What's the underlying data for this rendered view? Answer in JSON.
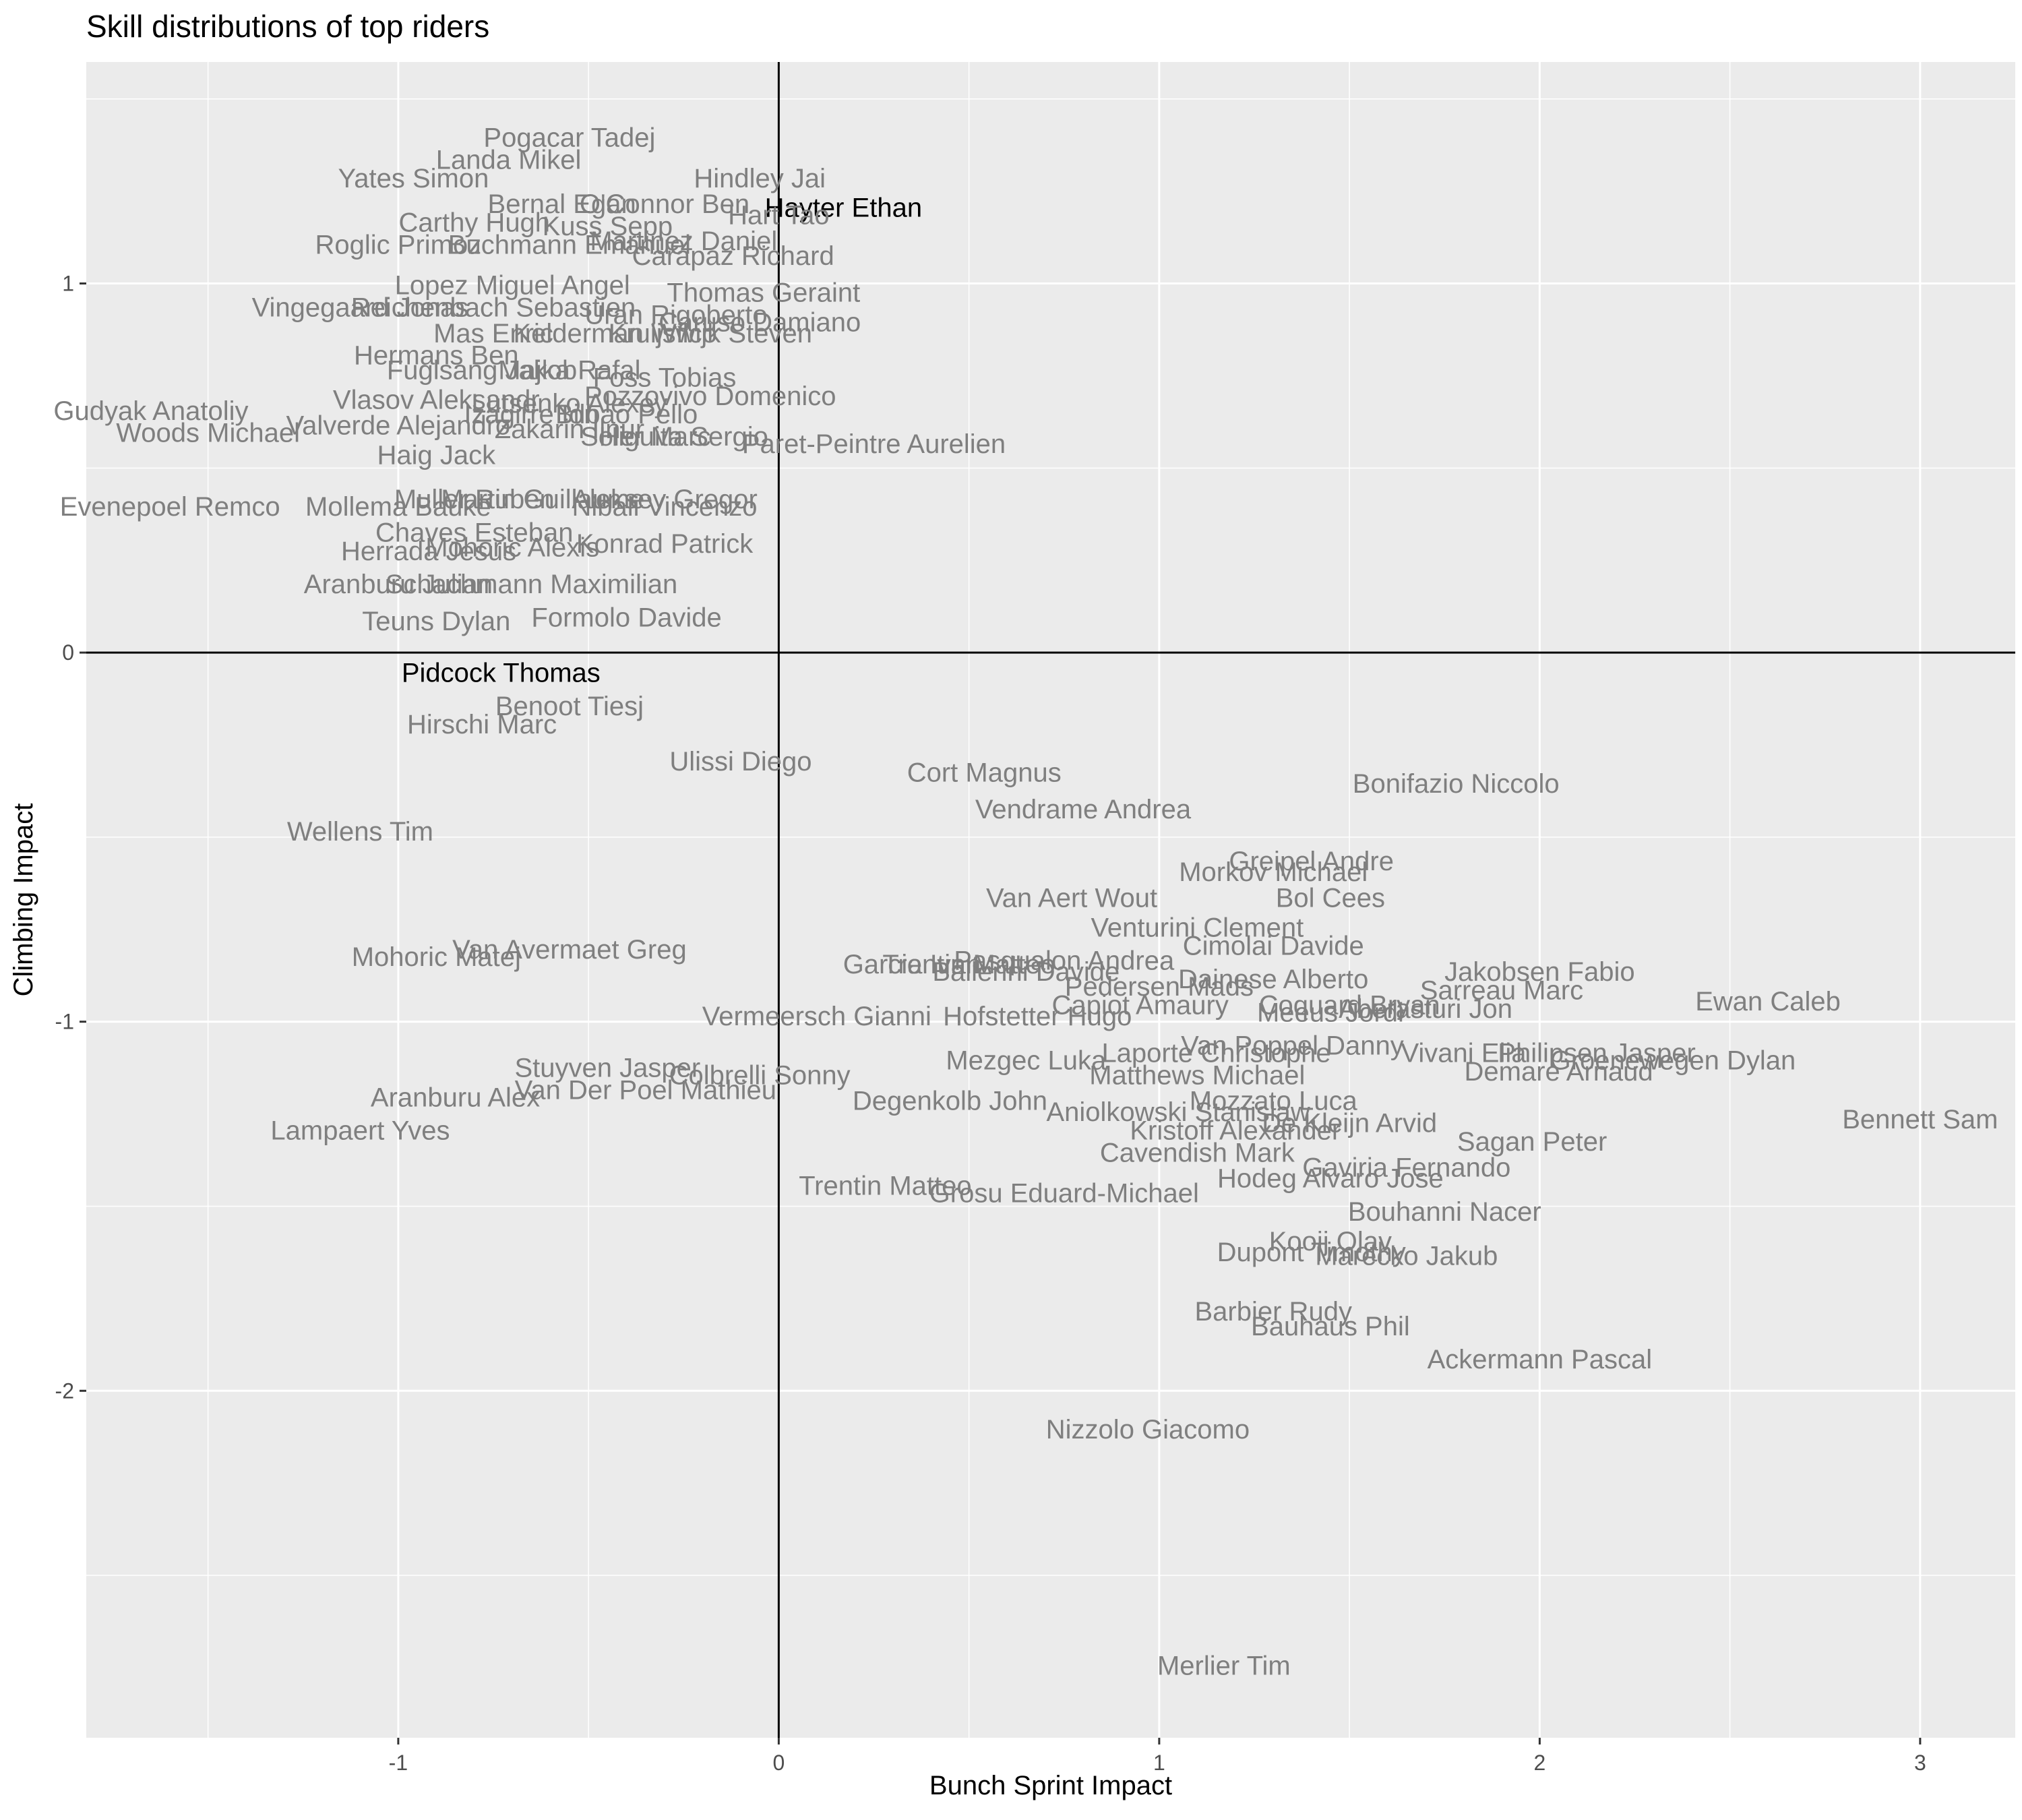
{
  "chart_data": {
    "type": "scatter",
    "title": "Skill distributions of top riders",
    "xlabel": "Bunch Sprint Impact",
    "ylabel": "Climbing Impact",
    "xlim": [
      -1.82,
      3.25
    ],
    "ylim": [
      -2.94,
      1.6
    ],
    "x_ticks": [
      -1,
      0,
      1,
      2,
      3
    ],
    "y_ticks": [
      -2,
      -1,
      0,
      1
    ],
    "grid": true,
    "reference_lines": {
      "x": 0,
      "y": 0
    },
    "colors": {
      "panel": "#ebebeb",
      "grid": "#ffffff",
      "label": "#7f7f7f",
      "highlight": "#000000"
    },
    "points": [
      {
        "name": "Pogacar Tadej",
        "x": -0.55,
        "y": 1.39
      },
      {
        "name": "Landa Mikel",
        "x": -0.71,
        "y": 1.33
      },
      {
        "name": "Yates Simon",
        "x": -0.96,
        "y": 1.28
      },
      {
        "name": "Hindley Jai",
        "x": -0.05,
        "y": 1.28
      },
      {
        "name": "Bernal Egan",
        "x": -0.57,
        "y": 1.21
      },
      {
        "name": "O'Connor Ben",
        "x": -0.3,
        "y": 1.21
      },
      {
        "name": "Hayter Ethan",
        "x": 0.17,
        "y": 1.2,
        "highlight": true
      },
      {
        "name": "Hart Tao",
        "x": 0.0,
        "y": 1.18
      },
      {
        "name": "Carthy Hugh",
        "x": -0.8,
        "y": 1.16
      },
      {
        "name": "Kuss Sepp",
        "x": -0.45,
        "y": 1.15
      },
      {
        "name": "Roglic Primoz",
        "x": -1.0,
        "y": 1.1
      },
      {
        "name": "Buchmann Emanuel",
        "x": -0.55,
        "y": 1.1
      },
      {
        "name": "Martinez Daniel",
        "x": -0.25,
        "y": 1.11
      },
      {
        "name": "Carapaz Richard",
        "x": -0.12,
        "y": 1.07
      },
      {
        "name": "Lopez Miguel Angel",
        "x": -0.7,
        "y": 0.99
      },
      {
        "name": "Thomas Geraint",
        "x": -0.04,
        "y": 0.97
      },
      {
        "name": "Vingegaard Jonas",
        "x": -1.1,
        "y": 0.93
      },
      {
        "name": "Reichenbach Sebastien",
        "x": -0.75,
        "y": 0.93
      },
      {
        "name": "Uran Rigoberto",
        "x": -0.27,
        "y": 0.91
      },
      {
        "name": "Caruso Damiano",
        "x": -0.05,
        "y": 0.89
      },
      {
        "name": "Mas Enric",
        "x": -0.75,
        "y": 0.86
      },
      {
        "name": "Kelderman Wilco",
        "x": -0.43,
        "y": 0.86
      },
      {
        "name": "Kruijswijk Steven",
        "x": -0.18,
        "y": 0.86
      },
      {
        "name": "Hermans Ben",
        "x": -0.9,
        "y": 0.8
      },
      {
        "name": "Fuglsang Jakob",
        "x": -0.78,
        "y": 0.76
      },
      {
        "name": "Majka Rafal",
        "x": -0.55,
        "y": 0.76
      },
      {
        "name": "Foss Tobias",
        "x": -0.3,
        "y": 0.74
      },
      {
        "name": "Vlasov Aleksandr",
        "x": -0.9,
        "y": 0.68
      },
      {
        "name": "Pozzovivo Domenico",
        "x": -0.18,
        "y": 0.69
      },
      {
        "name": "Lutsenko Alexey",
        "x": -0.55,
        "y": 0.67
      },
      {
        "name": "Izagirre Ion",
        "x": -0.65,
        "y": 0.64
      },
      {
        "name": "Bilbao Pello",
        "x": -0.4,
        "y": 0.64
      },
      {
        "name": "Valverde Alejandro",
        "x": -1.0,
        "y": 0.61
      },
      {
        "name": "Zakarin Ilnur",
        "x": -0.55,
        "y": 0.6
      },
      {
        "name": "Soler Marc",
        "x": -0.35,
        "y": 0.58
      },
      {
        "name": "Higuita Sergio",
        "x": -0.25,
        "y": 0.58
      },
      {
        "name": "Paret-Peintre Aurelien",
        "x": 0.25,
        "y": 0.56
      },
      {
        "name": "Gudyak Anatoliy",
        "x": -1.65,
        "y": 0.65
      },
      {
        "name": "Woods Michael",
        "x": -1.5,
        "y": 0.59
      },
      {
        "name": "Haig Jack",
        "x": -0.9,
        "y": 0.53
      },
      {
        "name": "Mollema Bauke",
        "x": -1.0,
        "y": 0.39
      },
      {
        "name": "Muller Ruben",
        "x": -0.8,
        "y": 0.41
      },
      {
        "name": "Martin Guillaume",
        "x": -0.62,
        "y": 0.41
      },
      {
        "name": "Aleksey Gregor",
        "x": -0.3,
        "y": 0.41
      },
      {
        "name": "Nibali Vincenzo",
        "x": -0.3,
        "y": 0.39
      },
      {
        "name": "Evenepoel Remco",
        "x": -1.6,
        "y": 0.39
      },
      {
        "name": "Chaves Esteban",
        "x": -0.8,
        "y": 0.32
      },
      {
        "name": "Konrad Patrick",
        "x": -0.3,
        "y": 0.29
      },
      {
        "name": "Herrada Jesus",
        "x": -0.92,
        "y": 0.27
      },
      {
        "name": "Mohoric Alexis",
        "x": -0.7,
        "y": 0.28
      },
      {
        "name": "Aranburu Julian",
        "x": -1.0,
        "y": 0.18
      },
      {
        "name": "Schachmann Maximilian",
        "x": -0.65,
        "y": 0.18
      },
      {
        "name": "Formolo Davide",
        "x": -0.4,
        "y": 0.09
      },
      {
        "name": "Teuns Dylan",
        "x": -0.9,
        "y": 0.08
      },
      {
        "name": "Pidcock Thomas",
        "x": -0.73,
        "y": -0.06,
        "highlight": true
      },
      {
        "name": "Benoot Tiesj",
        "x": -0.55,
        "y": -0.15
      },
      {
        "name": "Hirschi Marc",
        "x": -0.78,
        "y": -0.2
      },
      {
        "name": "Ulissi Diego",
        "x": -0.1,
        "y": -0.3
      },
      {
        "name": "Cort Magnus",
        "x": 0.54,
        "y": -0.33
      },
      {
        "name": "Bonifazio Niccolo",
        "x": 1.78,
        "y": -0.36
      },
      {
        "name": "Vendrame Andrea",
        "x": 0.8,
        "y": -0.43
      },
      {
        "name": "Wellens Tim",
        "x": -1.1,
        "y": -0.49
      },
      {
        "name": "Greipel Andre",
        "x": 1.4,
        "y": -0.57
      },
      {
        "name": "Morkov Michael",
        "x": 1.3,
        "y": -0.6
      },
      {
        "name": "Van Aert Wout",
        "x": 0.77,
        "y": -0.67
      },
      {
        "name": "Bol Cees",
        "x": 1.45,
        "y": -0.67
      },
      {
        "name": "Venturini Clement",
        "x": 1.1,
        "y": -0.75
      },
      {
        "name": "Cimolai Davide",
        "x": 1.3,
        "y": -0.8
      },
      {
        "name": "Van Avermaet Greg",
        "x": -0.55,
        "y": -0.81
      },
      {
        "name": "Mohoric Matej",
        "x": -0.9,
        "y": -0.83
      },
      {
        "name": "Garcia Ivan",
        "x": 0.35,
        "y": -0.85
      },
      {
        "name": "Trentin Matteo",
        "x": 0.5,
        "y": -0.85
      },
      {
        "name": "Pasqualon Andrea",
        "x": 0.75,
        "y": -0.84
      },
      {
        "name": "Ballerini Davide",
        "x": 0.65,
        "y": -0.87
      },
      {
        "name": "Dainese Alberto",
        "x": 1.3,
        "y": -0.89
      },
      {
        "name": "Pedersen Mads",
        "x": 1.0,
        "y": -0.91
      },
      {
        "name": "Jakobsen Fabio",
        "x": 2.0,
        "y": -0.87
      },
      {
        "name": "Sarreau Marc",
        "x": 1.9,
        "y": -0.92
      },
      {
        "name": "Ewan Caleb",
        "x": 2.6,
        "y": -0.95
      },
      {
        "name": "Coquard Bryan",
        "x": 1.5,
        "y": -0.96
      },
      {
        "name": "Aberasturi Jon",
        "x": 1.7,
        "y": -0.97
      },
      {
        "name": "Meeus Jordi",
        "x": 1.45,
        "y": -0.98
      },
      {
        "name": "Capiot Amaury",
        "x": 0.95,
        "y": -0.96
      },
      {
        "name": "Hofstetter Hugo",
        "x": 0.68,
        "y": -0.99
      },
      {
        "name": "Vermeersch Gianni",
        "x": 0.1,
        "y": -0.99
      },
      {
        "name": "Van Poppel Danny",
        "x": 1.35,
        "y": -1.07
      },
      {
        "name": "Laporte Christophe",
        "x": 1.15,
        "y": -1.09
      },
      {
        "name": "Vivani Elia",
        "x": 1.8,
        "y": -1.09
      },
      {
        "name": "Philipsen Jasper",
        "x": 2.15,
        "y": -1.09
      },
      {
        "name": "Groenewegen Dylan",
        "x": 2.35,
        "y": -1.11
      },
      {
        "name": "Demare Arnaud",
        "x": 2.05,
        "y": -1.14
      },
      {
        "name": "Mezgec Luka",
        "x": 0.65,
        "y": -1.11
      },
      {
        "name": "Matthews Michael",
        "x": 1.1,
        "y": -1.15
      },
      {
        "name": "Stuyven Jasper",
        "x": -0.45,
        "y": -1.13
      },
      {
        "name": "Colbrelli Sonny",
        "x": -0.05,
        "y": -1.15
      },
      {
        "name": "Van Der Poel Mathieu",
        "x": -0.35,
        "y": -1.19
      },
      {
        "name": "Aranburu Alex",
        "x": -0.85,
        "y": -1.21
      },
      {
        "name": "Degenkolb John",
        "x": 0.45,
        "y": -1.22
      },
      {
        "name": "Mozzato Luca",
        "x": 1.3,
        "y": -1.22
      },
      {
        "name": "Aniolkowski Stanislaw",
        "x": 1.05,
        "y": -1.25
      },
      {
        "name": "De Kleijn Arvid",
        "x": 1.5,
        "y": -1.28
      },
      {
        "name": "Lampaert Yves",
        "x": -1.1,
        "y": -1.3
      },
      {
        "name": "Bennett Sam",
        "x": 3.0,
        "y": -1.27
      },
      {
        "name": "Kristoff Alexander",
        "x": 1.2,
        "y": -1.3
      },
      {
        "name": "Sagan Peter",
        "x": 1.98,
        "y": -1.33
      },
      {
        "name": "Cavendish Mark",
        "x": 1.1,
        "y": -1.36
      },
      {
        "name": "Gaviria Fernando",
        "x": 1.65,
        "y": -1.4
      },
      {
        "name": "Hodeg Alvaro Jose",
        "x": 1.45,
        "y": -1.43
      },
      {
        "name": "Trentin Matteo",
        "x": 0.28,
        "y": -1.45
      },
      {
        "name": "Grosu Eduard-Michael",
        "x": 0.75,
        "y": -1.47
      },
      {
        "name": "Bouhanni Nacer",
        "x": 1.75,
        "y": -1.52
      },
      {
        "name": "Kooij Olav",
        "x": 1.45,
        "y": -1.6
      },
      {
        "name": "Dupont Timothy",
        "x": 1.4,
        "y": -1.63
      },
      {
        "name": "Marecko Jakub",
        "x": 1.65,
        "y": -1.64
      },
      {
        "name": "Barbier Rudy",
        "x": 1.3,
        "y": -1.79
      },
      {
        "name": "Bauhaus Phil",
        "x": 1.45,
        "y": -1.83
      },
      {
        "name": "Ackermann Pascal",
        "x": 2.0,
        "y": -1.92
      },
      {
        "name": "Nizzolo Giacomo",
        "x": 0.97,
        "y": -2.11
      },
      {
        "name": "Merlier Tim",
        "x": 1.17,
        "y": -2.75
      }
    ]
  }
}
